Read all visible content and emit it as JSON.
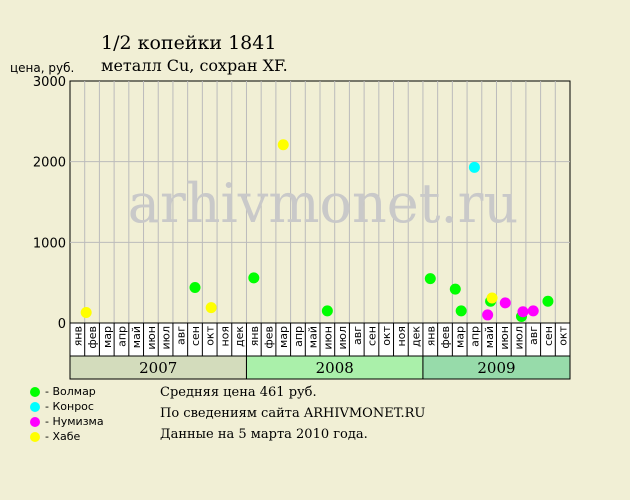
{
  "title": "1/2 копейки 1841",
  "subtitle": "металл Cu, сохран XF.",
  "y_axis_label": "цена, руб.",
  "watermark": "arhivmonet.ru",
  "colors": {
    "background": "#f1efd5",
    "grid": "#bbbbbb",
    "year_2007": "#d3dcbc",
    "year_2008": "#aaf0aa",
    "year_2009": "#97dbaa",
    "volmar": "#00ff00",
    "konros": "#00ffff",
    "numizma": "#ff00ff",
    "khabe": "#ffff00"
  },
  "legend": [
    {
      "name": "- Волмар",
      "color": "#00ff00"
    },
    {
      "name": "- Конрос",
      "color": "#00ffff"
    },
    {
      "name": "- Нумизма",
      "color": "#ff00ff"
    },
    {
      "name": "- Хабе",
      "color": "#ffff00"
    }
  ],
  "info": {
    "line1": "Средняя цена 461 руб.",
    "line2": "По сведениям сайта ARHIVMONET.RU",
    "line3": "Данные на 5 марта 2010 года."
  },
  "chart_data": {
    "type": "scatter",
    "ylim": [
      0,
      3000
    ],
    "yticks": [
      0,
      1000,
      2000,
      3000
    ],
    "months": [
      "янв",
      "фев",
      "мар",
      "апр",
      "май",
      "июн",
      "июл",
      "авг",
      "сен",
      "окт",
      "ноя",
      "дек",
      "янв",
      "фев",
      "мар",
      "апр",
      "май",
      "июн",
      "июл",
      "авг",
      "сен",
      "окт",
      "ноя",
      "дек",
      "янв",
      "фев",
      "мар",
      "апр",
      "май",
      "июн",
      "июл",
      "авг",
      "сен",
      "окт"
    ],
    "years": [
      {
        "label": "2007",
        "start": 0,
        "count": 12
      },
      {
        "label": "2008",
        "start": 12,
        "count": 12
      },
      {
        "label": "2009",
        "start": 24,
        "count": 10
      }
    ],
    "grid": true,
    "series": [
      {
        "name": "Волмар",
        "color": "#00ff00",
        "points": [
          {
            "x": 8.5,
            "y": 440
          },
          {
            "x": 12.5,
            "y": 560
          },
          {
            "x": 17.5,
            "y": 150
          },
          {
            "x": 24.5,
            "y": 550
          },
          {
            "x": 26.2,
            "y": 420
          },
          {
            "x": 26.6,
            "y": 150
          },
          {
            "x": 28.6,
            "y": 270
          },
          {
            "x": 30.7,
            "y": 80
          },
          {
            "x": 32.5,
            "y": 270
          }
        ]
      },
      {
        "name": "Конрос",
        "color": "#00ffff",
        "points": [
          {
            "x": 27.5,
            "y": 1930
          }
        ]
      },
      {
        "name": "Нумизма",
        "color": "#ff00ff",
        "points": [
          {
            "x": 28.4,
            "y": 100
          },
          {
            "x": 29.6,
            "y": 250
          },
          {
            "x": 30.8,
            "y": 140
          },
          {
            "x": 31.5,
            "y": 150
          }
        ]
      },
      {
        "name": "Хабе",
        "color": "#ffff00",
        "points": [
          {
            "x": 1.1,
            "y": 130
          },
          {
            "x": 9.6,
            "y": 190
          },
          {
            "x": 14.5,
            "y": 2210
          },
          {
            "x": 28.7,
            "y": 310
          }
        ]
      }
    ]
  }
}
